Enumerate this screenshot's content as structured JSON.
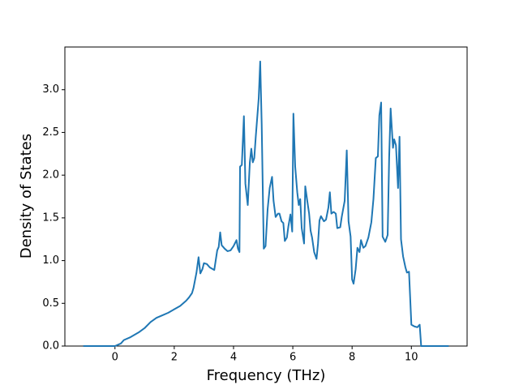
{
  "chart_data": {
    "type": "line",
    "xlabel": "Frequency (THz)",
    "ylabel": "Density of States",
    "color": "#1f77b4",
    "x": [
      -1.07,
      0,
      0.2,
      0.3,
      0.5,
      0.8,
      1.0,
      1.2,
      1.4,
      1.6,
      1.8,
      2.0,
      2.2,
      2.4,
      2.5,
      2.6,
      2.65,
      2.75,
      2.82,
      2.88,
      2.95,
      3.0,
      3.1,
      3.2,
      3.35,
      3.45,
      3.5,
      3.55,
      3.6,
      3.7,
      3.8,
      3.9,
      4.0,
      4.1,
      4.15,
      4.2,
      4.22,
      4.28,
      4.35,
      4.4,
      4.48,
      4.55,
      4.6,
      4.65,
      4.7,
      4.75,
      4.85,
      4.9,
      4.95,
      5.02,
      5.08,
      5.15,
      5.22,
      5.3,
      5.35,
      5.42,
      5.5,
      5.55,
      5.62,
      5.68,
      5.73,
      5.8,
      5.85,
      5.92,
      5.98,
      6.02,
      6.08,
      6.15,
      6.2,
      6.25,
      6.3,
      6.38,
      6.42,
      6.5,
      6.55,
      6.6,
      6.65,
      6.72,
      6.8,
      6.85,
      6.9,
      6.95,
      7.05,
      7.12,
      7.2,
      7.25,
      7.3,
      7.38,
      7.45,
      7.5,
      7.6,
      7.65,
      7.75,
      7.82,
      7.88,
      7.95,
      8.0,
      8.05,
      8.12,
      8.18,
      8.25,
      8.3,
      8.38,
      8.45,
      8.55,
      8.65,
      8.72,
      8.8,
      8.87,
      8.92,
      8.98,
      9.03,
      9.12,
      9.2,
      9.25,
      9.3,
      9.38,
      9.42,
      9.48,
      9.55,
      9.6,
      9.65,
      9.72,
      9.8,
      9.85,
      9.92,
      10.0,
      10.1,
      10.2,
      10.28,
      10.33,
      11.26
    ],
    "values": [
      0,
      0,
      0.03,
      0.07,
      0.1,
      0.16,
      0.21,
      0.28,
      0.33,
      0.36,
      0.39,
      0.43,
      0.47,
      0.53,
      0.57,
      0.62,
      0.68,
      0.86,
      1.04,
      0.85,
      0.9,
      0.97,
      0.96,
      0.92,
      0.89,
      1.12,
      1.16,
      1.33,
      1.18,
      1.14,
      1.11,
      1.12,
      1.17,
      1.24,
      1.14,
      1.1,
      2.1,
      2.12,
      2.69,
      1.9,
      1.65,
      2.15,
      2.31,
      2.15,
      2.2,
      2.45,
      2.9,
      3.33,
      2.6,
      1.14,
      1.17,
      1.6,
      1.85,
      1.98,
      1.7,
      1.51,
      1.55,
      1.55,
      1.46,
      1.44,
      1.23,
      1.27,
      1.4,
      1.54,
      1.34,
      2.72,
      2.1,
      1.8,
      1.65,
      1.72,
      1.38,
      1.2,
      1.87,
      1.67,
      1.55,
      1.35,
      1.27,
      1.1,
      1.02,
      1.2,
      1.47,
      1.52,
      1.46,
      1.48,
      1.62,
      1.8,
      1.55,
      1.57,
      1.55,
      1.38,
      1.39,
      1.51,
      1.7,
      2.29,
      1.46,
      1.28,
      0.78,
      0.73,
      0.9,
      1.15,
      1.1,
      1.24,
      1.15,
      1.17,
      1.27,
      1.45,
      1.72,
      2.2,
      2.22,
      2.7,
      2.85,
      1.28,
      1.22,
      1.3,
      2.2,
      2.78,
      2.32,
      2.42,
      2.35,
      1.85,
      2.45,
      1.25,
      1.05,
      0.92,
      0.86,
      0.87,
      0.25,
      0.23,
      0.22,
      0.25,
      0,
      0
    ],
    "xlim": [
      -1.69,
      11.88
    ],
    "ylim": [
      0,
      3.5
    ],
    "xticks": [
      0,
      2,
      4,
      6,
      8,
      10
    ],
    "yticks": [
      {
        "value": 0,
        "label": "0.0"
      },
      0.5,
      {
        "value": 1,
        "label": "1.0"
      },
      1.5,
      {
        "value": 2,
        "label": "2.0"
      },
      2.5,
      {
        "value": 3,
        "label": "3.0"
      }
    ]
  }
}
